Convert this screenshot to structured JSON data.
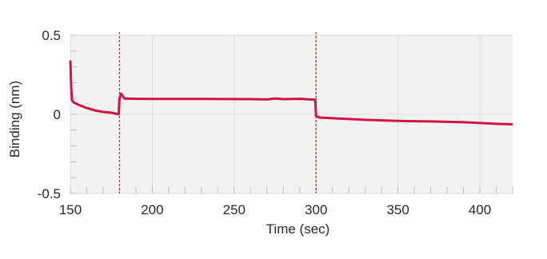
{
  "chart_data": {
    "type": "line",
    "title": "",
    "xlabel": "Time (sec)",
    "ylabel": "Binding (nm)",
    "xlim": [
      150,
      420
    ],
    "ylim": [
      -0.5,
      0.5
    ],
    "x_ticks": [
      150,
      200,
      250,
      300,
      350,
      400
    ],
    "x_tick_labels": [
      "150",
      "200",
      "250",
      "300",
      "350",
      "400"
    ],
    "y_ticks": [
      0.5,
      0,
      -0.5
    ],
    "y_tick_labels": [
      "0.5",
      "0",
      "-0.5"
    ],
    "grid": true,
    "vertical_markers": [
      180,
      300
    ],
    "series": [
      {
        "color": "#d01446",
        "x": [
          150,
          150.5,
          151,
          152,
          155,
          160,
          165,
          170,
          175,
          179.5,
          180,
          181,
          183,
          190,
          200,
          230,
          260,
          270,
          275,
          280,
          290,
          299.5,
          300,
          302,
          310,
          330,
          350,
          370,
          390,
          410,
          420
        ],
        "y": [
          0.34,
          0.17,
          0.09,
          0.075,
          0.06,
          0.04,
          0.025,
          0.015,
          0.01,
          0.0,
          0.1,
          0.13,
          0.1,
          0.098,
          0.097,
          0.097,
          0.096,
          0.094,
          0.1,
          0.096,
          0.098,
          0.092,
          -0.01,
          -0.02,
          -0.025,
          -0.035,
          -0.042,
          -0.045,
          -0.05,
          -0.06,
          -0.063
        ]
      }
    ]
  },
  "colors": {
    "plot_background": "#f2f2f2",
    "grid": "#dcdcdc",
    "marker": "#c0392b",
    "series": "#d01446"
  }
}
